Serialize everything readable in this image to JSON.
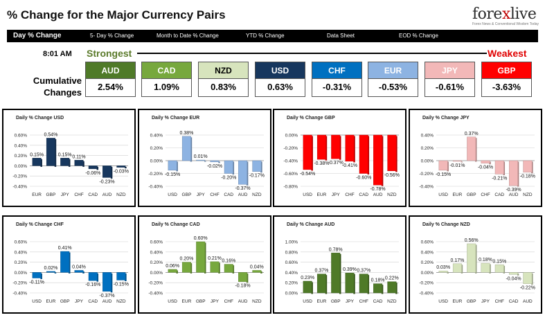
{
  "header": {
    "title": "% Change for the Major Currency Pairs",
    "logo": {
      "brand_prefix": "fore",
      "brand_x": "x",
      "brand_suffix": "live",
      "tagline": "Forex News & Conventional Wisdom Today"
    }
  },
  "tabs": [
    {
      "label": "Day % Change",
      "active": true
    },
    {
      "label": "5- Day % Change"
    },
    {
      "label": "Month to Date % Change"
    },
    {
      "label": "YTD % Change"
    },
    {
      "label": "Data Sheet"
    },
    {
      "label": "EOD % Change"
    }
  ],
  "summary": {
    "time": "8:01 AM",
    "strongest_label": "Strongest",
    "weakest_label": "Weakest",
    "cumulative_label_line1": "Cumulative",
    "cumulative_label_line2": "Changes",
    "currencies": [
      {
        "code": "AUD",
        "value": "2.54%",
        "bg": "#4f7a28",
        "fg": "#ffffff"
      },
      {
        "code": "CAD",
        "value": "1.09%",
        "bg": "#77a83d",
        "fg": "#ffffff"
      },
      {
        "code": "NZD",
        "value": "0.83%",
        "bg": "#d7e4bd",
        "fg": "#000000"
      },
      {
        "code": "USD",
        "value": "0.63%",
        "bg": "#17375e",
        "fg": "#ffffff"
      },
      {
        "code": "CHF",
        "value": "-0.31%",
        "bg": "#0070c0",
        "fg": "#ffffff"
      },
      {
        "code": "EUR",
        "value": "-0.53%",
        "bg": "#8db3e2",
        "fg": "#ffffff"
      },
      {
        "code": "JPY",
        "value": "-0.61%",
        "bg": "#f2b8b8",
        "fg": "#ffffff"
      },
      {
        "code": "GBP",
        "value": "-3.63%",
        "bg": "#ff0000",
        "fg": "#ffffff"
      }
    ]
  },
  "chart_data": [
    {
      "type": "bar",
      "title": "Daily % Change USD",
      "categories": [
        "EUR",
        "GBP",
        "JPY",
        "CHF",
        "CAD",
        "AUD",
        "NZD"
      ],
      "values": [
        0.15,
        0.54,
        0.15,
        0.11,
        -0.06,
        -0.23,
        -0.03
      ],
      "labels": [
        "0.15%",
        "0.54%",
        "0.15%",
        "0.11%",
        "-0.06%",
        "-0.23%",
        "-0.03%"
      ],
      "ylim": [
        -0.4,
        0.6
      ],
      "ticks": [
        -0.4,
        -0.2,
        0,
        0.2,
        0.4,
        0.6
      ],
      "tick_labels": [
        "-0.40%",
        "-0.20%",
        "0.00%",
        "0.20%",
        "0.40%",
        "0.60%"
      ],
      "color": "#17375e"
    },
    {
      "type": "bar",
      "title": "Daily % Change EUR",
      "categories": [
        "USD",
        "GBP",
        "JPY",
        "CHF",
        "CAD",
        "AUD",
        "NZD"
      ],
      "values": [
        -0.15,
        0.38,
        0.01,
        -0.02,
        -0.2,
        -0.37,
        -0.17
      ],
      "labels": [
        "-0.15%",
        "0.38%",
        "0.01%",
        "-0.02%",
        "-0.20%",
        "-0.37%",
        "-0.17%"
      ],
      "ylim": [
        -0.4,
        0.4
      ],
      "ticks": [
        -0.4,
        -0.2,
        0,
        0.2,
        0.4
      ],
      "tick_labels": [
        "-0.40%",
        "-0.20%",
        "0.00%",
        "0.20%",
        "0.40%"
      ],
      "color": "#8db3e2"
    },
    {
      "type": "bar",
      "title": "Daily % Change GBP",
      "categories": [
        "USD",
        "EUR",
        "JPY",
        "CHF",
        "CAD",
        "AUD",
        "NZD"
      ],
      "values": [
        -0.54,
        -0.38,
        -0.37,
        -0.41,
        -0.6,
        -0.78,
        -0.56
      ],
      "labels": [
        "-0.54%",
        "-0.38%",
        "-0.37%",
        "-0.41%",
        "-0.60%",
        "-0.78%",
        "-0.56%"
      ],
      "ylim": [
        -0.8,
        0
      ],
      "ticks": [
        -0.8,
        -0.6,
        -0.4,
        -0.2,
        0
      ],
      "tick_labels": [
        "-0.80%",
        "-0.60%",
        "-0.40%",
        "-0.20%",
        "0.00%"
      ],
      "color": "#ff0000"
    },
    {
      "type": "bar",
      "title": "Daily % Change JPY",
      "categories": [
        "USD",
        "EUR",
        "GBP",
        "CHF",
        "CAD",
        "AUD",
        "NZD"
      ],
      "values": [
        -0.15,
        -0.01,
        0.37,
        -0.04,
        -0.21,
        -0.39,
        -0.18
      ],
      "labels": [
        "-0.15%",
        "-0.01%",
        "0.37%",
        "-0.04%",
        "-0.21%",
        "-0.39%",
        "-0.18%"
      ],
      "ylim": [
        -0.4,
        0.4
      ],
      "ticks": [
        -0.4,
        -0.2,
        0,
        0.2,
        0.4
      ],
      "tick_labels": [
        "-0.40%",
        "-0.20%",
        "0.00%",
        "0.20%",
        "0.40%"
      ],
      "color": "#f2b8b8"
    },
    {
      "type": "bar",
      "title": "Daily % Change CHF",
      "categories": [
        "USD",
        "EUR",
        "GBP",
        "JPY",
        "CAD",
        "AUD",
        "NZD"
      ],
      "values": [
        -0.11,
        0.02,
        0.41,
        0.04,
        -0.16,
        -0.37,
        -0.15
      ],
      "labels": [
        "-0.11%",
        "0.02%",
        "0.41%",
        "0.04%",
        "-0.16%",
        "-0.37%",
        "-0.15%"
      ],
      "ylim": [
        -0.4,
        0.6
      ],
      "ticks": [
        -0.4,
        -0.2,
        0,
        0.2,
        0.4,
        0.6
      ],
      "tick_labels": [
        "-0.40%",
        "-0.20%",
        "0.00%",
        "0.20%",
        "0.40%",
        "0.60%"
      ],
      "color": "#0070c0"
    },
    {
      "type": "bar",
      "title": "Daily % Change CAD",
      "categories": [
        "USD",
        "EUR",
        "GBP",
        "JPY",
        "CHF",
        "AUD",
        "NZD"
      ],
      "values": [
        0.06,
        0.2,
        0.6,
        0.21,
        0.16,
        -0.18,
        0.04
      ],
      "labels": [
        "0.06%",
        "0.20%",
        "0.60%",
        "0.21%",
        "0.16%",
        "-0.18%",
        "0.04%"
      ],
      "ylim": [
        -0.4,
        0.6
      ],
      "ticks": [
        -0.4,
        -0.2,
        0,
        0.2,
        0.4,
        0.6
      ],
      "tick_labels": [
        "-0.40%",
        "-0.20%",
        "0.00%",
        "0.20%",
        "0.40%",
        "0.60%"
      ],
      "color": "#77a83d"
    },
    {
      "type": "bar",
      "title": "Daily % Change AUD",
      "categories": [
        "USD",
        "EUR",
        "GBP",
        "JPY",
        "CHF",
        "CAD",
        "NZD"
      ],
      "values": [
        0.23,
        0.37,
        0.78,
        0.39,
        0.37,
        0.18,
        0.22
      ],
      "labels": [
        "0.23%",
        "0.37%",
        "0.78%",
        "0.39%",
        "0.37%",
        "0.18%",
        "0.22%"
      ],
      "ylim": [
        0,
        1
      ],
      "ticks": [
        0,
        0.2,
        0.4,
        0.6,
        0.8,
        1
      ],
      "tick_labels": [
        "0.00%",
        "0.20%",
        "0.40%",
        "0.60%",
        "0.80%",
        "1.00%"
      ],
      "color": "#4f7a28"
    },
    {
      "type": "bar",
      "title": "Daily % Change NZD",
      "categories": [
        "USD",
        "EUR",
        "GBP",
        "JPY",
        "CHF",
        "CAD",
        "AUD"
      ],
      "values": [
        0.03,
        0.17,
        0.56,
        0.18,
        0.15,
        -0.04,
        -0.22
      ],
      "labels": [
        "0.03%",
        "0.17%",
        "0.56%",
        "0.18%",
        "0.15%",
        "-0.04%",
        "-0.22%"
      ],
      "ylim": [
        -0.4,
        0.6
      ],
      "ticks": [
        -0.4,
        -0.2,
        0,
        0.2,
        0.4,
        0.6
      ],
      "tick_labels": [
        "-0.40%",
        "-0.20%",
        "0.00%",
        "0.20%",
        "0.40%",
        "0.60%"
      ],
      "color": "#d7e4bd"
    }
  ]
}
